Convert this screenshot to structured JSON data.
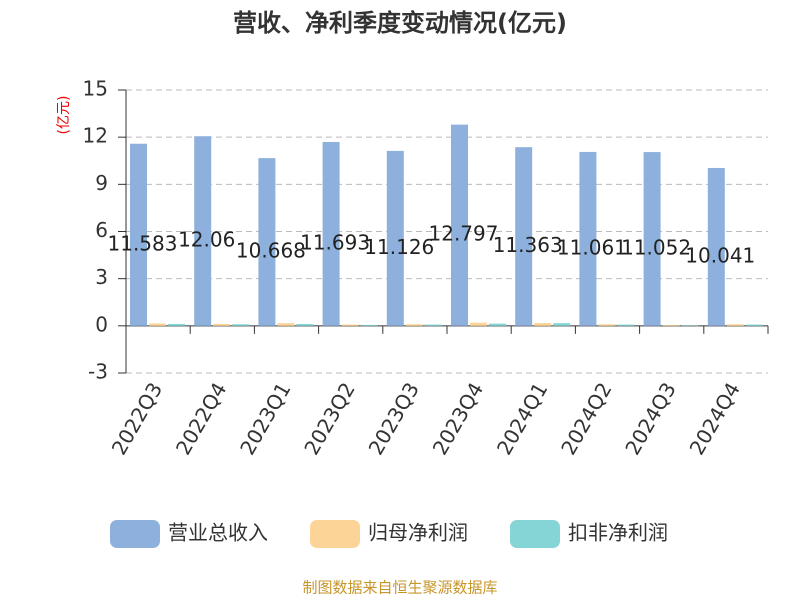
{
  "chart_data": {
    "type": "bar",
    "title": "营收、净利季度变动情况(亿元)",
    "y_label": "(亿元)",
    "categories": [
      "2022Q3",
      "2022Q4",
      "2023Q1",
      "2023Q2",
      "2023Q3",
      "2023Q4",
      "2024Q1",
      "2024Q2",
      "2024Q3",
      "2024Q4"
    ],
    "series": [
      {
        "name": "营业总收入",
        "color": "#8eb0dc",
        "values": [
          11.583,
          12.06,
          10.668,
          11.693,
          11.126,
          12.797,
          11.363,
          11.061,
          11.052,
          10.041
        ]
      },
      {
        "name": "归母净利润",
        "color": "#fdd497",
        "values": [
          0.15,
          0.12,
          0.17,
          0.08,
          0.1,
          0.2,
          0.18,
          0.1,
          0.05,
          0.1
        ]
      },
      {
        "name": "扣非净利润",
        "color": "#85d5d6",
        "values": [
          0.12,
          0.1,
          0.12,
          0.06,
          0.08,
          0.14,
          0.17,
          0.08,
          0.03,
          0.08
        ]
      }
    ],
    "label_series": 0,
    "ylim": [
      -3,
      15
    ],
    "yticks": [
      -3,
      0,
      3,
      6,
      9,
      12,
      15
    ],
    "grid": true,
    "source": "制图数据来自恒生聚源数据库"
  }
}
